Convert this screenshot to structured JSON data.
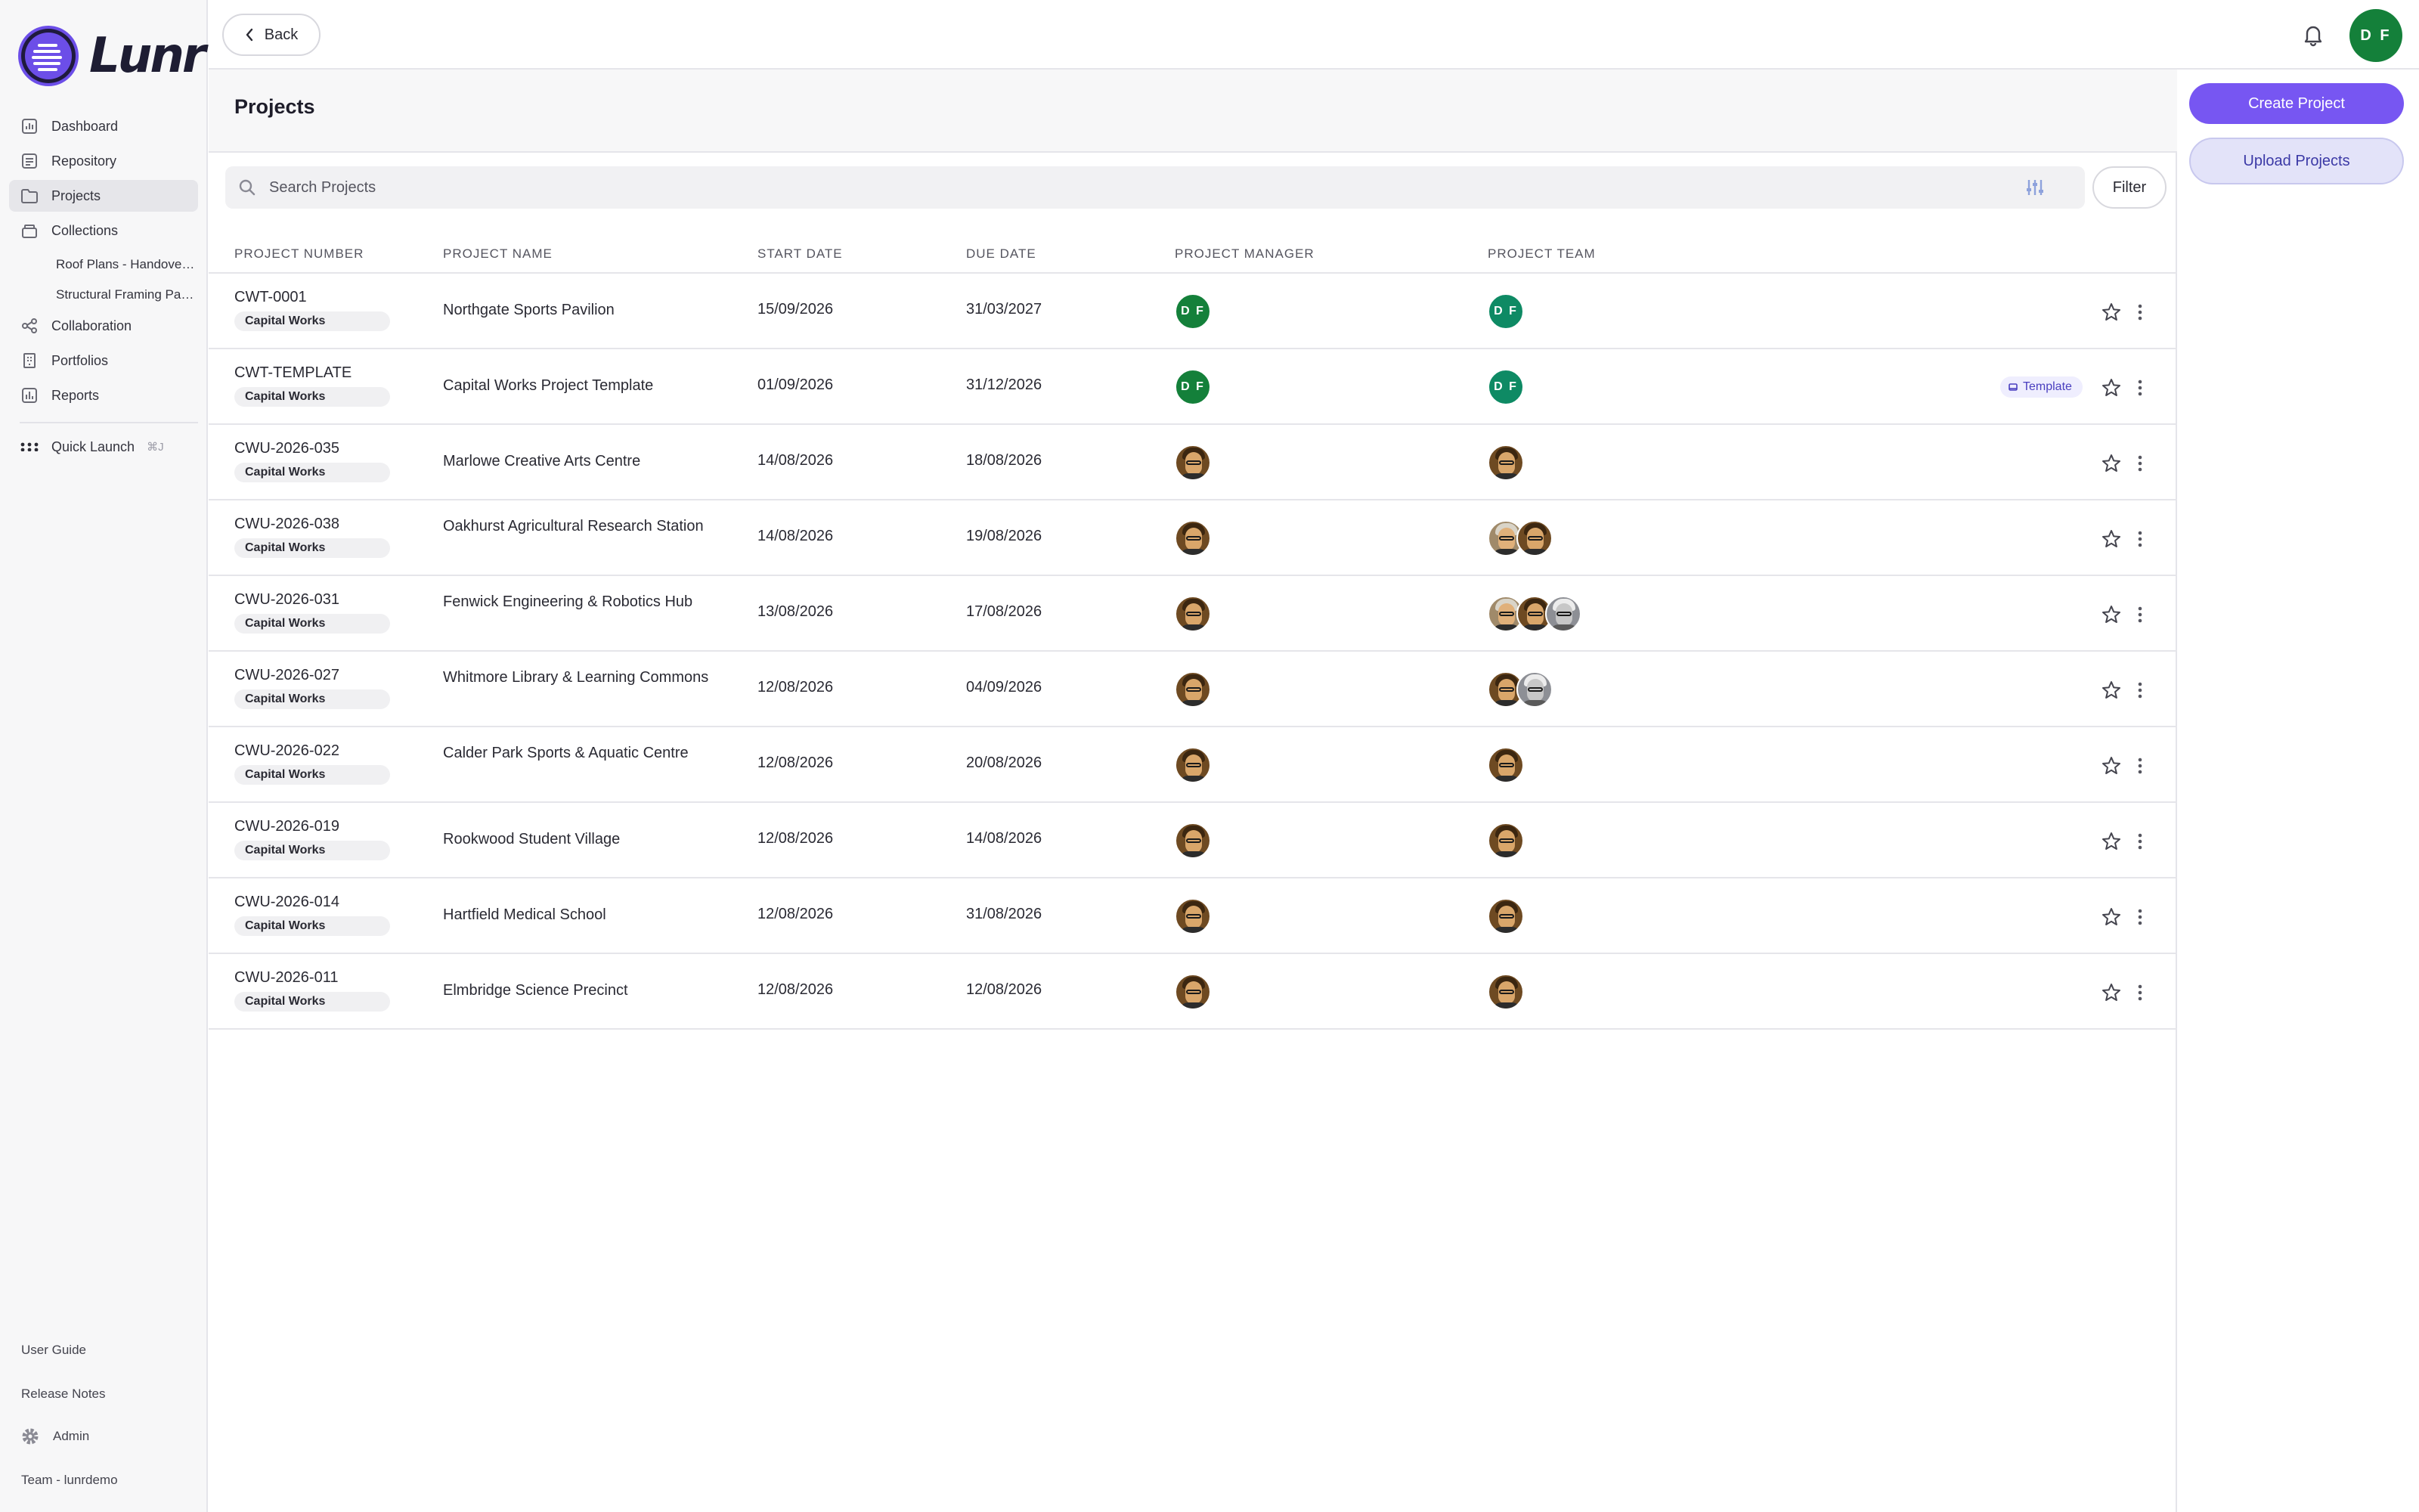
{
  "app": {
    "name": "Lunr"
  },
  "sidebar": {
    "items": [
      {
        "label": "Dashboard",
        "icon": "dashboard-icon"
      },
      {
        "label": "Repository",
        "icon": "repository-icon"
      },
      {
        "label": "Projects",
        "icon": "folder-icon",
        "active": true
      },
      {
        "label": "Collections",
        "icon": "collections-icon"
      }
    ],
    "collections": [
      "Roof Plans - Handover Package",
      "Structural Framing Package"
    ],
    "items2": [
      {
        "label": "Collaboration",
        "icon": "share-icon"
      },
      {
        "label": "Portfolios",
        "icon": "building-icon"
      },
      {
        "label": "Reports",
        "icon": "chart-icon"
      }
    ],
    "quick_launch": {
      "label": "Quick Launch",
      "shortcut": "⌘J"
    },
    "footer": {
      "user_guide": "User Guide",
      "release_notes": "Release Notes",
      "admin": "Admin",
      "team": "Team - lunrdemo"
    }
  },
  "topbar": {
    "back_label": "Back",
    "user_initials": "DF"
  },
  "main": {
    "title": "Projects",
    "search_placeholder": "Search Projects",
    "filter_label": "Filter",
    "columns": [
      "PROJECT NUMBER",
      "PROJECT NAME",
      "START DATE",
      "DUE DATE",
      "PROJECT MANAGER",
      "PROJECT TEAM"
    ],
    "template_badge": "Template",
    "rows": [
      {
        "number": "CWT-0001",
        "category": "Capital Works",
        "name": "Northgate Sports Pavilion",
        "start": "15/09/2026",
        "due": "31/03/2027",
        "manager": "DF",
        "team": [
          "DF"
        ],
        "template": false
      },
      {
        "number": "CWT-TEMPLATE",
        "category": "Capital Works",
        "name": "Capital Works Project Template",
        "start": "01/09/2026",
        "due": "31/12/2026",
        "manager": "DF",
        "team": [
          "DF"
        ],
        "template": true
      },
      {
        "number": "CWU-2026-035",
        "category": "Capital Works",
        "name": "Marlowe Creative Arts Centre",
        "start": "14/08/2026",
        "due": "18/08/2026",
        "manager": "photo",
        "team": [
          "photo"
        ],
        "template": false
      },
      {
        "number": "CWU-2026-038",
        "category": "Capital Works",
        "name": "Oakhurst Agricultural Research Station",
        "start": "14/08/2026",
        "due": "19/08/2026",
        "manager": "photo",
        "team": [
          "tan",
          "photo"
        ],
        "template": false
      },
      {
        "number": "CWU-2026-031",
        "category": "Capital Works",
        "name": "Fenwick Engineering & Robotics Hub",
        "start": "13/08/2026",
        "due": "17/08/2026",
        "manager": "photo",
        "team": [
          "tan",
          "photo",
          "gray"
        ],
        "template": false
      },
      {
        "number": "CWU-2026-027",
        "category": "Capital Works",
        "name": "Whitmore Library & Learning Commons",
        "start": "12/08/2026",
        "due": "04/09/2026",
        "manager": "photo",
        "team": [
          "photo",
          "gray"
        ],
        "template": false
      },
      {
        "number": "CWU-2026-022",
        "category": "Capital Works",
        "name": "Calder Park Sports & Aquatic Centre",
        "start": "12/08/2026",
        "due": "20/08/2026",
        "manager": "photo",
        "team": [
          "photo"
        ],
        "template": false
      },
      {
        "number": "CWU-2026-019",
        "category": "Capital Works",
        "name": "Rookwood Student Village",
        "start": "12/08/2026",
        "due": "14/08/2026",
        "manager": "photo",
        "team": [
          "photo"
        ],
        "template": false
      },
      {
        "number": "CWU-2026-014",
        "category": "Capital Works",
        "name": "Hartfield Medical School",
        "start": "12/08/2026",
        "due": "31/08/2026",
        "manager": "photo",
        "team": [
          "photo"
        ],
        "template": false
      },
      {
        "number": "CWU-2026-011",
        "category": "Capital Works",
        "name": "Elmbridge Science Precinct",
        "start": "12/08/2026",
        "due": "12/08/2026",
        "manager": "photo",
        "team": [
          "photo"
        ],
        "template": false
      }
    ]
  },
  "actions": {
    "create_label": "Create Project",
    "upload_label": "Upload Projects"
  },
  "colors": {
    "accent": "#7756f2",
    "avatar_green": "#14803a",
    "avatar_teal": "#0e8a64"
  }
}
